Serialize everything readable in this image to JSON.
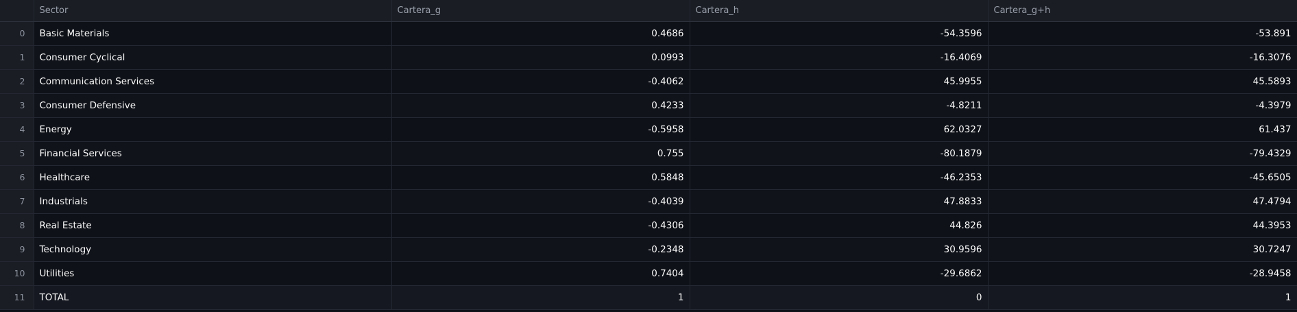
{
  "columns": {
    "index": "",
    "sector": "Sector",
    "g": "Cartera_g",
    "h": "Cartera_h",
    "gh": "Cartera_g+h"
  },
  "rows": [
    {
      "index": "0",
      "sector": "Basic Materials",
      "g": "0.4686",
      "h": "-54.3596",
      "gh": "-53.891"
    },
    {
      "index": "1",
      "sector": "Consumer Cyclical",
      "g": "0.0993",
      "h": "-16.4069",
      "gh": "-16.3076"
    },
    {
      "index": "2",
      "sector": "Communication Services",
      "g": "-0.4062",
      "h": "45.9955",
      "gh": "45.5893"
    },
    {
      "index": "3",
      "sector": "Consumer Defensive",
      "g": "0.4233",
      "h": "-4.8211",
      "gh": "-4.3979"
    },
    {
      "index": "4",
      "sector": "Energy",
      "g": "-0.5958",
      "h": "62.0327",
      "gh": "61.437"
    },
    {
      "index": "5",
      "sector": "Financial Services",
      "g": "0.755",
      "h": "-80.1879",
      "gh": "-79.4329"
    },
    {
      "index": "6",
      "sector": "Healthcare",
      "g": "0.5848",
      "h": "-46.2353",
      "gh": "-45.6505"
    },
    {
      "index": "7",
      "sector": "Industrials",
      "g": "-0.4039",
      "h": "47.8833",
      "gh": "47.4794"
    },
    {
      "index": "8",
      "sector": "Real Estate",
      "g": "-0.4306",
      "h": "44.826",
      "gh": "44.3953"
    },
    {
      "index": "9",
      "sector": "Technology",
      "g": "-0.2348",
      "h": "30.9596",
      "gh": "30.7247"
    },
    {
      "index": "10",
      "sector": "Utilities",
      "g": "0.7404",
      "h": "-29.6862",
      "gh": "-28.9458"
    },
    {
      "index": "11",
      "sector": "TOTAL",
      "g": "1",
      "h": "0",
      "gh": "1"
    }
  ]
}
